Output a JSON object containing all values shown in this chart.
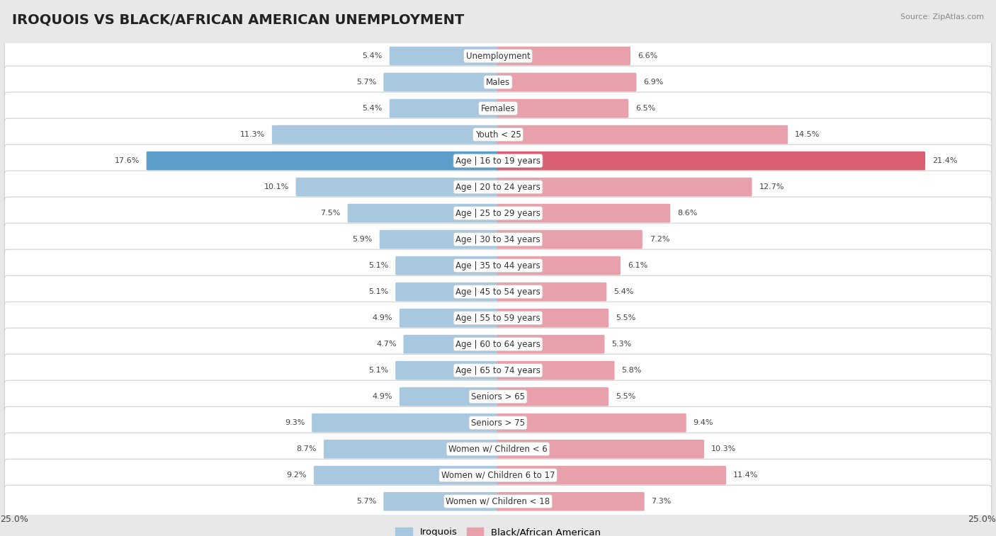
{
  "title": "IROQUOIS VS BLACK/AFRICAN AMERICAN UNEMPLOYMENT",
  "source": "Source: ZipAtlas.com",
  "categories": [
    "Unemployment",
    "Males",
    "Females",
    "Youth < 25",
    "Age | 16 to 19 years",
    "Age | 20 to 24 years",
    "Age | 25 to 29 years",
    "Age | 30 to 34 years",
    "Age | 35 to 44 years",
    "Age | 45 to 54 years",
    "Age | 55 to 59 years",
    "Age | 60 to 64 years",
    "Age | 65 to 74 years",
    "Seniors > 65",
    "Seniors > 75",
    "Women w/ Children < 6",
    "Women w/ Children 6 to 17",
    "Women w/ Children < 18"
  ],
  "iroquois_values": [
    5.4,
    5.7,
    5.4,
    11.3,
    17.6,
    10.1,
    7.5,
    5.9,
    5.1,
    5.1,
    4.9,
    4.7,
    5.1,
    4.9,
    9.3,
    8.7,
    9.2,
    5.7
  ],
  "black_values": [
    6.6,
    6.9,
    6.5,
    14.5,
    21.4,
    12.7,
    8.6,
    7.2,
    6.1,
    5.4,
    5.5,
    5.3,
    5.8,
    5.5,
    9.4,
    10.3,
    11.4,
    7.3
  ],
  "iroquois_color": "#a8c8e0",
  "black_color": "#e8a0aa",
  "highlight_iroquois_color": "#5b9ec9",
  "highlight_black_color": "#d95f72",
  "x_max": 25.0,
  "background_color": "#e8e8e8",
  "bar_bg_even": "#f8f8f8",
  "bar_bg_odd": "#eeeeee",
  "legend_iroquois": "Iroquois",
  "legend_black": "Black/African American",
  "title_fontsize": 14,
  "label_fontsize": 8.5,
  "value_fontsize": 8.0
}
